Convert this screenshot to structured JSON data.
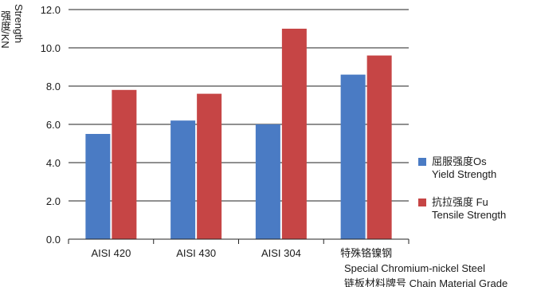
{
  "chart_data": {
    "type": "bar",
    "ylabel": "强度/KN",
    "ylabel_en": "Strength",
    "yticks": [
      "0.0",
      "2.0",
      "4.0",
      "6.0",
      "8.0",
      "10.0",
      "12.0"
    ],
    "ylim": [
      0,
      12
    ],
    "grid": true,
    "legend_placement": "right",
    "categories": [
      {
        "lines": [
          "AISI 420"
        ]
      },
      {
        "lines": [
          "AISI 430"
        ]
      },
      {
        "lines": [
          "AISI 304"
        ]
      },
      {
        "lines": [
          "特殊铬镍钢",
          "Special Chromium-nickel Steel",
          "链板材料牌号 Chain Material Grade"
        ]
      }
    ],
    "series": [
      {
        "name": "屈服强度Os",
        "name_en": "Yield Strength",
        "color": "#4a7bc4",
        "values": [
          5.5,
          6.2,
          6.0,
          8.6
        ]
      },
      {
        "name": "抗拉强度 Fu",
        "name_en": "Tensile Strength",
        "color": "#c64545",
        "values": [
          7.8,
          7.6,
          11.0,
          9.6
        ]
      }
    ]
  }
}
